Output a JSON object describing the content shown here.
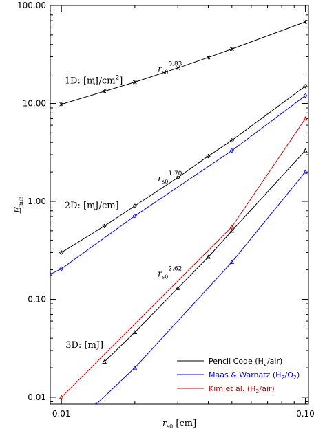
{
  "chart_data": {
    "type": "line",
    "x_scale": "log",
    "y_scale": "log",
    "xlim": [
      0.009,
      0.103
    ],
    "ylim": [
      0.0085,
      100
    ],
    "xlabel": {
      "main": "r",
      "sub": "s0",
      "unit": " [cm]"
    },
    "ylabel": {
      "main": "E",
      "sub": "min"
    },
    "x_ticks": [
      {
        "value": 0.01,
        "label": "0.01"
      },
      {
        "value": 0.1,
        "label": "0.10"
      }
    ],
    "y_ticks": [
      {
        "value": 0.01,
        "label": "0.01"
      },
      {
        "value": 0.1,
        "label": "0.10"
      },
      {
        "value": 1,
        "label": "1.00"
      },
      {
        "value": 10,
        "label": "10.00"
      },
      {
        "value": 100,
        "label": "100.00"
      }
    ],
    "series": [
      {
        "name": "Pencil Code (H2/air)",
        "legend": {
          "pre": "Pencil Code (H",
          "s1": "2",
          "mid": "/air)",
          "s2": "",
          "post": ""
        },
        "color": "#000000",
        "marker": "star",
        "points": [
          [
            0.01,
            9.8
          ],
          [
            0.015,
            13.3
          ],
          [
            0.02,
            16.5
          ],
          [
            0.03,
            23.0
          ],
          [
            0.04,
            29.5
          ],
          [
            0.05,
            36.0
          ],
          [
            0.1,
            68.0
          ]
        ]
      },
      {
        "name": "Pencil Code (H2/air)",
        "legend": null,
        "color": "#000000",
        "marker": "diamond",
        "points": [
          [
            0.01,
            0.3
          ],
          [
            0.015,
            0.56
          ],
          [
            0.02,
            0.9
          ],
          [
            0.03,
            1.75
          ],
          [
            0.04,
            2.9
          ],
          [
            0.05,
            4.2
          ],
          [
            0.1,
            15.0
          ]
        ]
      },
      {
        "name": "Pencil Code (H2/air)",
        "legend": null,
        "color": "#000000",
        "marker": "triangle",
        "points": [
          [
            0.015,
            0.023
          ],
          [
            0.02,
            0.046
          ],
          [
            0.03,
            0.13
          ],
          [
            0.04,
            0.27
          ],
          [
            0.05,
            0.5
          ],
          [
            0.1,
            3.3
          ]
        ]
      },
      {
        "name": "Maas & Warnatz (H2/O2)",
        "legend": {
          "pre": "Maas & Warnatz (H",
          "s1": "2",
          "mid": "/O",
          "s2": "2",
          "post": ")"
        },
        "color": "#0000ff",
        "marker": "diamond",
        "points": [
          [
            0.009,
            0.18
          ],
          [
            0.01,
            0.205
          ],
          [
            0.02,
            0.71
          ],
          [
            0.05,
            3.3
          ],
          [
            0.1,
            12.0
          ]
        ]
      },
      {
        "name": "Maas & Warnatz (H2/O2)",
        "legend": null,
        "color": "#0000ff",
        "marker": "triangle",
        "points": [
          [
            0.0139,
            0.0085
          ],
          [
            0.02,
            0.02
          ],
          [
            0.05,
            0.24
          ],
          [
            0.1,
            2.0
          ]
        ]
      },
      {
        "name": "Kim et al. (H2/air)",
        "legend": {
          "pre": "Kim et al. (H",
          "s1": "2",
          "mid": "/air)",
          "s2": "",
          "post": ""
        },
        "color": "#cc0000",
        "marker": "triangle",
        "points": [
          [
            0.01,
            0.01
          ],
          [
            0.05,
            0.55
          ],
          [
            0.1,
            7.0
          ]
        ]
      }
    ],
    "annotations": [
      {
        "id": "label-1d",
        "text": "1D: [mJ/cm",
        "sup": "2",
        "tail": "]",
        "x": 0.0103,
        "y": 16.0
      },
      {
        "id": "label-2d",
        "text": "2D: [mJ/cm]",
        "sup": "",
        "tail": "",
        "x": 0.0103,
        "y": 0.85
      },
      {
        "id": "label-3d",
        "text": "3D: [mJ]",
        "sup": "",
        "tail": "",
        "x": 0.0104,
        "y": 0.032
      }
    ],
    "slope_labels": [
      {
        "id": "slope-1d",
        "base": "r",
        "sub": "s0",
        "exp": "0.83",
        "x": 0.0248,
        "y": 21.0
      },
      {
        "id": "slope-2d",
        "base": "r",
        "sub": "s0",
        "exp": "1.70",
        "x": 0.0248,
        "y": 1.6
      },
      {
        "id": "slope-3d",
        "base": "r",
        "sub": "s0",
        "exp": "2.62",
        "x": 0.0248,
        "y": 0.17
      }
    ],
    "legend_position": "bottom-right",
    "grid": false
  }
}
